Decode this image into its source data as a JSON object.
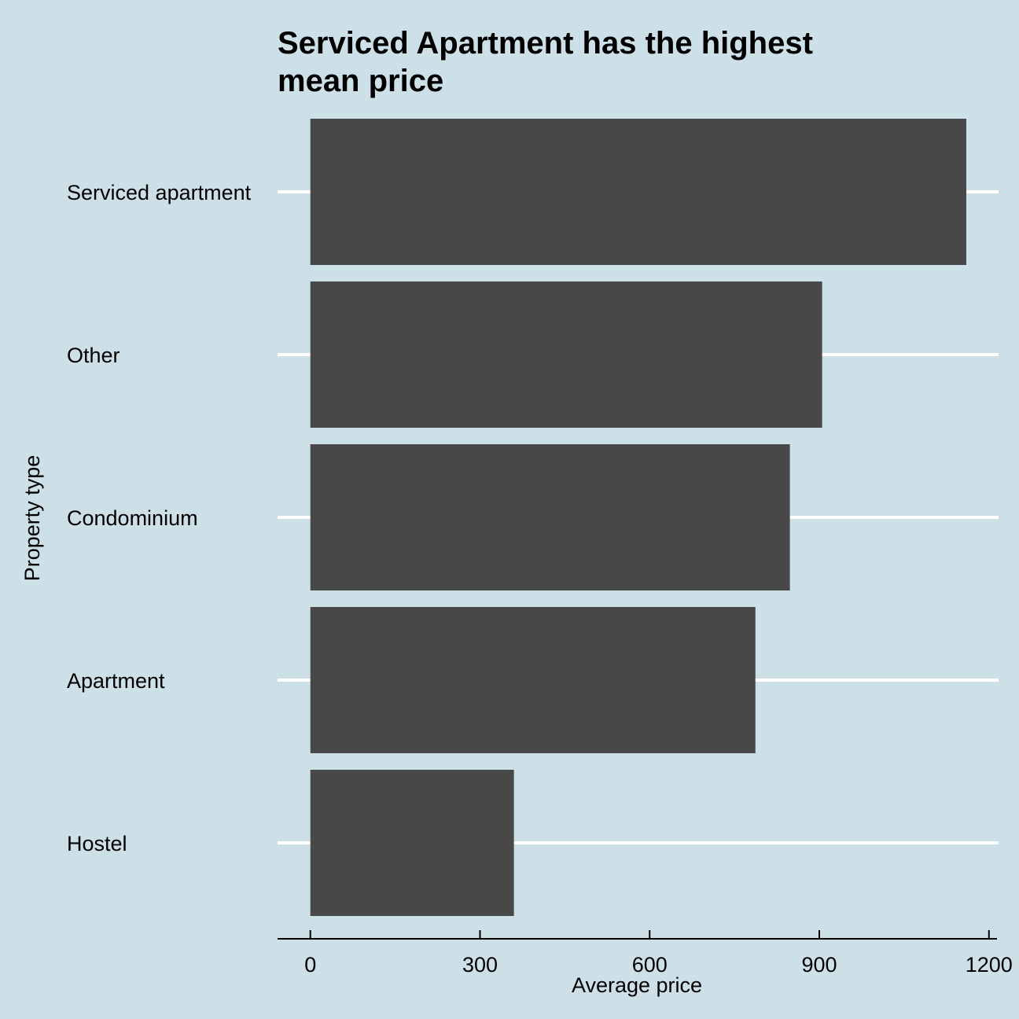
{
  "chart_data": {
    "type": "bar",
    "orientation": "horizontal",
    "title_lines": [
      "Serviced Apartment has the highest",
      "mean price"
    ],
    "xlabel": "Average price",
    "ylabel": "Property type",
    "categories": [
      "Serviced apartment",
      "Other",
      "Condominium",
      "Apartment",
      "Hostel"
    ],
    "values": [
      1160,
      905,
      848,
      787,
      360
    ],
    "xlim": [
      -58,
      1217
    ],
    "xticks": [
      0,
      300,
      600,
      900,
      1200
    ],
    "xtick_labels": [
      "0",
      "300",
      "600",
      "900",
      "1200"
    ],
    "grid": "horizontal-major",
    "colors": {
      "background": "#cddfe7",
      "bar": "#484848",
      "grid": "#ffffff",
      "axis": "#000000"
    }
  }
}
